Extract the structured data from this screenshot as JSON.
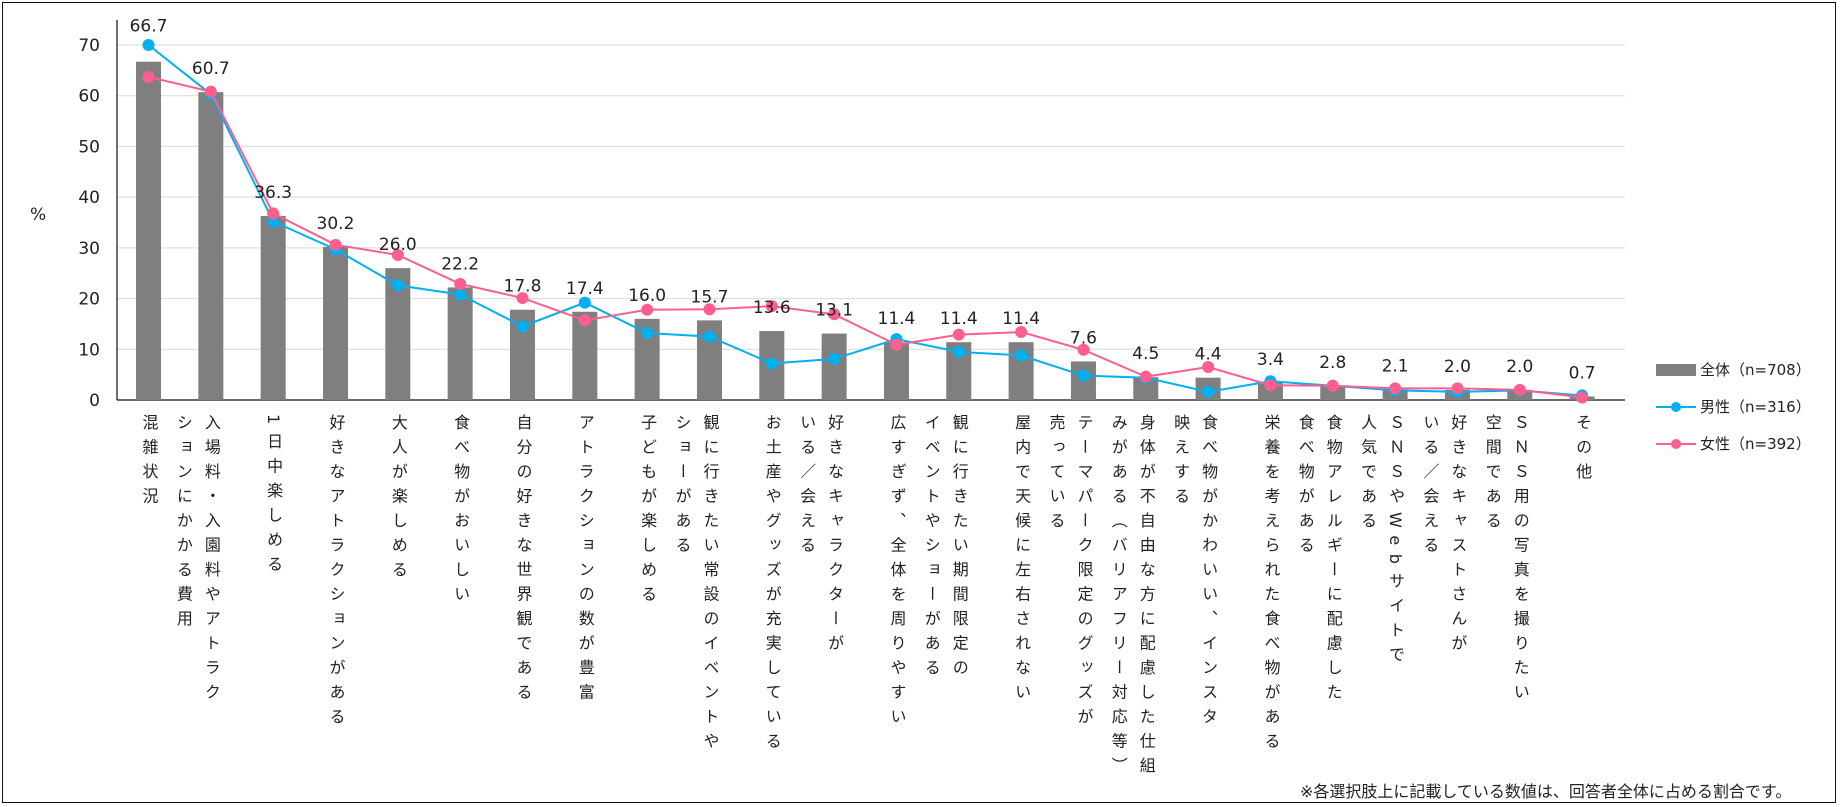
{
  "chart_data": {
    "type": "bar+line",
    "ylabel": "%",
    "ylim": [
      0,
      70
    ],
    "yticks": [
      0,
      10,
      20,
      30,
      40,
      50,
      60,
      70
    ],
    "grid": true,
    "legend_placement": "right",
    "categories": [
      "混雑状況",
      "入場料・入園料やアトラク\nションにかかる費用",
      "1日中楽しめる",
      "好きなアトラクションがある",
      "大人が楽しめる",
      "食べ物がおいしい",
      "自分の好きな世界観である",
      "アトラクションの数が豊富",
      "子どもが楽しめる",
      "観に行きたい常設のイベントや\nショーがある",
      "お土産やグッズが充実している",
      "好きなキャラクターが\nいる／会える",
      "広すぎず、全体を周りやすい",
      "観に行きたい期間限定の\nイベントやショーがある",
      "屋内で天候に左右されない",
      "テーマパーク限定のグッズが\n売っている",
      "身体が不自由な方に配慮した仕組\nみがある（バリアフリー対応等）",
      "食べ物がかわいい、インスタ\n映えする",
      "栄養を考えられた食べ物がある",
      "食物アレルギーに配慮した\n食べ物がある",
      "ＳＮＳやWebサイトで\n人気である",
      "好きなキャストさんが\nいる／会える",
      "ＳＮＳ用の写真を撮りたい\n空間である",
      "その他"
    ],
    "series": [
      {
        "name": "全体（n=708）",
        "type": "bar",
        "color": "#7f7f7f",
        "values": [
          66.7,
          60.7,
          36.3,
          30.2,
          26.0,
          22.2,
          17.8,
          17.4,
          16.0,
          15.7,
          13.6,
          13.1,
          11.4,
          11.4,
          11.4,
          7.6,
          4.5,
          4.4,
          3.4,
          2.8,
          2.1,
          2.0,
          2.0,
          0.7
        ],
        "labels": [
          "66.7",
          "60.7",
          "36.3",
          "30.2",
          "26.0",
          "22.2",
          "17.8",
          "17.4",
          "16.0",
          "15.7",
          "13.6",
          "13.1",
          "11.4",
          "11.4",
          "11.4",
          "7.6",
          "4.5",
          "4.4",
          "3.4",
          "2.8",
          "2.1",
          "2.0",
          "2.0",
          "0.7"
        ]
      },
      {
        "name": "男性（n=316）",
        "type": "line",
        "color": "#00b0f0",
        "values": [
          70.0,
          60.3,
          35.2,
          29.7,
          22.6,
          20.8,
          14.5,
          19.2,
          13.2,
          12.5,
          7.2,
          8.1,
          12.0,
          9.5,
          8.8,
          4.8,
          4.4,
          1.6,
          3.7,
          2.8,
          1.9,
          1.6,
          1.9,
          0.9
        ]
      },
      {
        "name": "女性（n=392）",
        "type": "line",
        "color": "#ff5f8f",
        "values": [
          63.7,
          60.8,
          36.8,
          30.6,
          28.6,
          22.9,
          20.1,
          15.7,
          17.8,
          17.9,
          18.5,
          16.9,
          10.9,
          12.9,
          13.4,
          9.9,
          4.6,
          6.5,
          2.9,
          2.8,
          2.3,
          2.3,
          2.0,
          0.5
        ]
      }
    ],
    "footnote": "※各選択肢上に記載している数値は、回答者全体に占める割合です。"
  }
}
